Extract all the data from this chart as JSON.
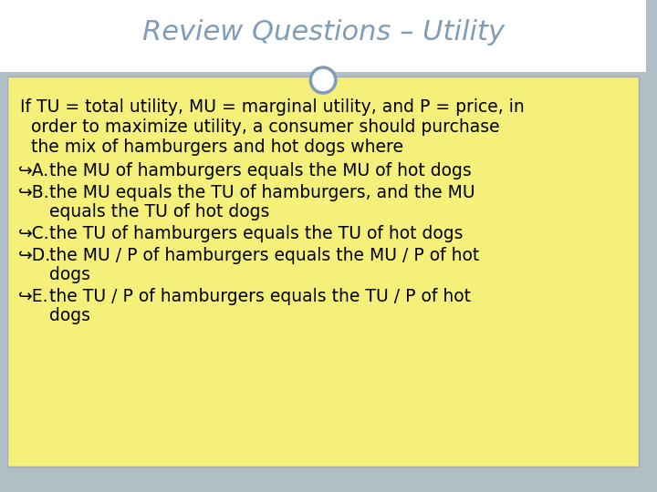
{
  "title": "Review Questions – Utility",
  "title_color": "#7f9db9",
  "title_fontsize": 22,
  "bg_outer": "#b0bec5",
  "bg_header": "#ffffff",
  "bg_content": "#f5f07a",
  "circle_color": "#7f9db9",
  "circle_facecolor": "#ffffff",
  "intro_text": "If TU = total utility, MU = marginal utility, and P = price, in order to maximize utility, a consumer should purchase the mix of hamburgers and hot dogs where",
  "options": [
    {
      "label": "A.",
      "text": "the MU of hamburgers equals the MU of hot dogs"
    },
    {
      "label": "B.",
      "text": "the MU equals the TU of hamburgers, and the MU equals the TU of hot dogs"
    },
    {
      "label": "C.",
      "text": "the TU of hamburgers equals the TU of hot dogs"
    },
    {
      "label": "D.",
      "text": "the MU / P of hamburgers equals the MU / P of hot dogs"
    },
    {
      "label": "E.",
      "text": "the TU / P of hamburgers equals the TU / P of hot dogs"
    }
  ],
  "text_color": "#000000",
  "font_family": "Georgia",
  "content_fontsize": 13.5
}
